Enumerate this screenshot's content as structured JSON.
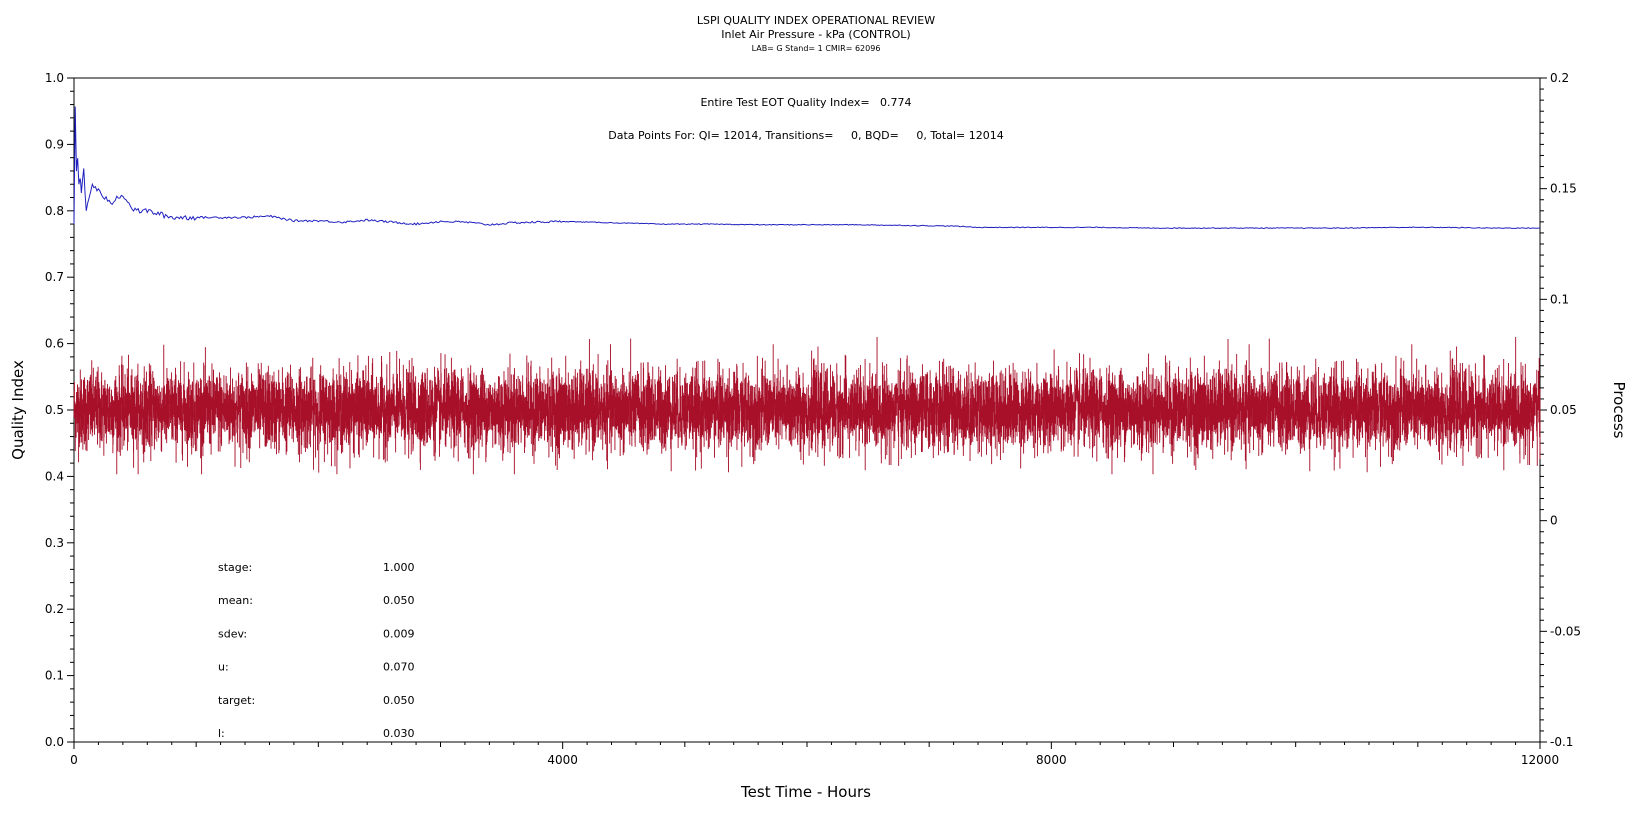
{
  "chart_data": {
    "type": "line",
    "title": "LSPI QUALITY INDEX OPERATIONAL REVIEW",
    "subtitle": "Inlet Air Pressure - kPa (CONTROL)",
    "subtitle2": "LAB= G Stand= 1 CMIR= 62096",
    "xlabel": "Test Time - Hours",
    "ylabel_left": "Quality Index",
    "ylabel_right": "Process",
    "xlim": [
      0,
      12000
    ],
    "ylim_left": [
      0,
      1.0
    ],
    "ylim_right": [
      -0.1,
      0.2
    ],
    "x_ticks": [
      "0",
      "4000",
      "8000",
      "12000"
    ],
    "y_left_ticks": [
      "0.0",
      "0.1",
      "0.2",
      "0.3",
      "0.4",
      "0.5",
      "0.6",
      "0.7",
      "0.8",
      "0.9",
      "1.0"
    ],
    "y_right_ticks": [
      "-0.1",
      "-0.05",
      "0",
      "0.05",
      "0.1",
      "0.15",
      "0.2"
    ],
    "annotation_eot": "Entire Test EOT Quality Index=   0.774",
    "annotation_points": "Data Points For: QI= 12014, Transitions=     0, BQD=     0, Total= 12014",
    "stats": [
      {
        "label": "stage:",
        "value": "1.000"
      },
      {
        "label": "mean:",
        "value": "0.050"
      },
      {
        "label": "sdev:",
        "value": "0.009"
      },
      {
        "label": "u:",
        "value": "0.070"
      },
      {
        "label": "target:",
        "value": "0.050"
      },
      {
        "label": "l:",
        "value": "0.030"
      }
    ],
    "series": [
      {
        "axis": "left",
        "color": "#2020c0",
        "x": [
          0,
          10,
          20,
          30,
          40,
          50,
          60,
          80,
          100,
          150,
          200,
          250,
          300,
          350,
          400,
          450,
          500,
          600,
          700,
          800,
          900,
          1000,
          1200,
          1400,
          1600,
          1800,
          2000,
          2200,
          2400,
          2600,
          2800,
          3000,
          3200,
          3400,
          3600,
          3800,
          4000,
          4400,
          4800,
          5200,
          5600,
          6000,
          6400,
          6800,
          7200,
          7400,
          7600,
          8000,
          8400,
          8800,
          9200,
          9600,
          10000,
          10400,
          10800,
          11200,
          11600,
          12000
        ],
        "y": [
          0.78,
          0.955,
          0.86,
          0.88,
          0.84,
          0.85,
          0.83,
          0.86,
          0.8,
          0.84,
          0.83,
          0.82,
          0.81,
          0.82,
          0.825,
          0.81,
          0.8,
          0.8,
          0.795,
          0.79,
          0.79,
          0.79,
          0.79,
          0.79,
          0.792,
          0.785,
          0.785,
          0.783,
          0.786,
          0.783,
          0.78,
          0.784,
          0.783,
          0.779,
          0.782,
          0.783,
          0.784,
          0.782,
          0.78,
          0.78,
          0.779,
          0.779,
          0.779,
          0.778,
          0.777,
          0.775,
          0.775,
          0.775,
          0.775,
          0.774,
          0.774,
          0.774,
          0.774,
          0.774,
          0.775,
          0.775,
          0.774,
          0.774
        ]
      },
      {
        "axis": "right",
        "color": "#a8102a",
        "mean": 0.05,
        "sdev": 0.009,
        "n": 12014
      }
    ]
  }
}
